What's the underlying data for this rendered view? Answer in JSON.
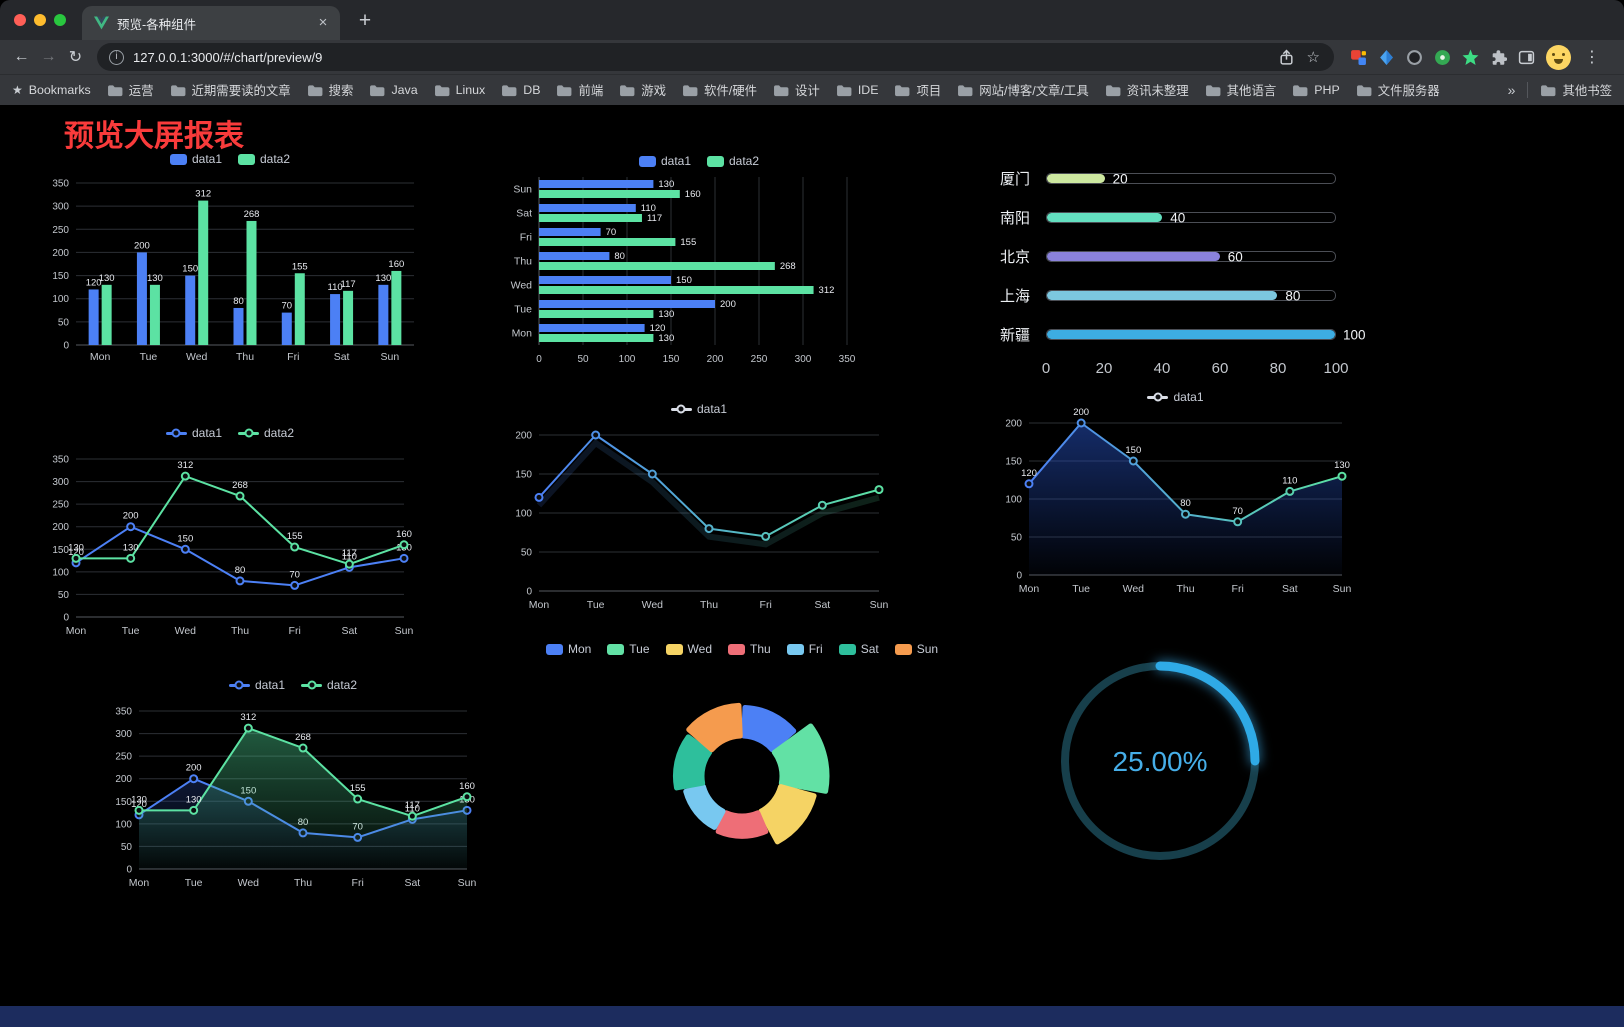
{
  "browser": {
    "tab": {
      "title": "预览-各种组件"
    },
    "url": "127.0.0.1:3000/#/chart/preview/9",
    "bookmarks_label": "Bookmarks",
    "bookmarks": [
      "运营",
      "近期需要读的文章",
      "搜索",
      "Java",
      "Linux",
      "DB",
      "前端",
      "游戏",
      "软件/硬件",
      "设计",
      "IDE",
      "项目",
      "网站/博客/文章/工具",
      "资讯未整理",
      "其他语言",
      "PHP",
      "文件服务器"
    ],
    "bookmarks_overflow": "»",
    "other_bookmarks": "其他书签"
  },
  "page": {
    "title": "预览大屏报表"
  },
  "chart_data": [
    {
      "type": "bar",
      "categories": [
        "Mon",
        "Tue",
        "Wed",
        "Thu",
        "Fri",
        "Sat",
        "Sun"
      ],
      "series": [
        {
          "name": "data1",
          "color": "#4C80F5",
          "values": [
            120,
            200,
            150,
            80,
            70,
            110,
            130
          ]
        },
        {
          "name": "data2",
          "color": "#5CE2A3",
          "values": [
            130,
            130,
            312,
            268,
            155,
            117,
            160
          ]
        }
      ],
      "ylim": [
        0,
        350
      ],
      "ystep": 50,
      "legend_position": "top"
    },
    {
      "type": "bar-horizontal",
      "categories": [
        "Mon",
        "Tue",
        "Wed",
        "Thu",
        "Fri",
        "Sat",
        "Sun"
      ],
      "series": [
        {
          "name": "data1",
          "color": "#4C80F5",
          "values": [
            120,
            200,
            150,
            80,
            70,
            110,
            130
          ]
        },
        {
          "name": "data2",
          "color": "#5CE2A3",
          "values": [
            130,
            130,
            312,
            268,
            155,
            117,
            160
          ]
        }
      ],
      "xlim": [
        0,
        350
      ],
      "xstep": 50,
      "legend_position": "top"
    },
    {
      "type": "progress",
      "items": [
        {
          "label": "厦门",
          "value": 20,
          "color": "#CDE8A0"
        },
        {
          "label": "南阳",
          "value": 40,
          "color": "#63DFC0"
        },
        {
          "label": "北京",
          "value": 60,
          "color": "#8A82DB"
        },
        {
          "label": "上海",
          "value": 80,
          "color": "#7CC7DF"
        },
        {
          "label": "新疆",
          "value": 100,
          "color": "#3DADE2"
        }
      ],
      "max": 100,
      "xticks": [
        0,
        20,
        40,
        60,
        80,
        100
      ]
    },
    {
      "type": "line",
      "categories": [
        "Mon",
        "Tue",
        "Wed",
        "Thu",
        "Fri",
        "Sat",
        "Sun"
      ],
      "series": [
        {
          "name": "data1",
          "color": "#4C80F5",
          "values": [
            120,
            200,
            150,
            80,
            70,
            110,
            130
          ]
        },
        {
          "name": "data2",
          "color": "#5CE2A3",
          "values": [
            130,
            130,
            312,
            268,
            155,
            117,
            160
          ]
        }
      ],
      "ylim": [
        0,
        350
      ],
      "ystep": 50,
      "labels": true,
      "legend_position": "top"
    },
    {
      "type": "line",
      "categories": [
        "Mon",
        "Tue",
        "Wed",
        "Thu",
        "Fri",
        "Sat",
        "Sun"
      ],
      "series": [
        {
          "name": "data1",
          "gradient": [
            "#4C80F5",
            "#5CE2A3"
          ],
          "legend_color": "#D9DDE6",
          "values": [
            120,
            200,
            150,
            80,
            70,
            110,
            130
          ]
        }
      ],
      "ylim": [
        0,
        200
      ],
      "ystep": 50,
      "labels": false,
      "shadow": true,
      "legend_position": "top"
    },
    {
      "type": "line",
      "categories": [
        "Mon",
        "Tue",
        "Wed",
        "Thu",
        "Fri",
        "Sat",
        "Sun"
      ],
      "series": [
        {
          "name": "data1",
          "gradient": [
            "#4C80F5",
            "#5CE2A3"
          ],
          "legend_color": "#D9DDE6",
          "area_from": "rgba(38,80,190,0.55)",
          "area_to": "rgba(38,80,190,0.03)",
          "values": [
            120,
            200,
            150,
            80,
            70,
            110,
            130
          ]
        }
      ],
      "ylim": [
        0,
        200
      ],
      "ystep": 50,
      "labels": true,
      "legend_position": "top"
    },
    {
      "type": "line",
      "categories": [
        "Mon",
        "Tue",
        "Wed",
        "Thu",
        "Fri",
        "Sat",
        "Sun"
      ],
      "series": [
        {
          "name": "data1",
          "color": "#4C80F5",
          "area_from": "rgba(40,70,150,0.35)",
          "area_to": "rgba(40,70,150,0.02)",
          "values": [
            120,
            200,
            150,
            80,
            70,
            110,
            130
          ]
        },
        {
          "name": "data2",
          "color": "#5CE2A3",
          "area_from": "rgba(74,200,140,0.45)",
          "area_to": "rgba(74,200,140,0.03)",
          "values": [
            130,
            130,
            312,
            268,
            155,
            117,
            160
          ]
        }
      ],
      "ylim": [
        0,
        350
      ],
      "ystep": 50,
      "labels": true,
      "legend_position": "top"
    },
    {
      "type": "pie",
      "rose": true,
      "items": [
        {
          "name": "Mon",
          "value": 120,
          "color": "#4C80F5"
        },
        {
          "name": "Tue",
          "value": 200,
          "color": "#62E1A5"
        },
        {
          "name": "Wed",
          "value": 150,
          "color": "#F5D364"
        },
        {
          "name": "Thu",
          "value": 80,
          "color": "#EE6E77"
        },
        {
          "name": "Fri",
          "value": 70,
          "color": "#78C8F0"
        },
        {
          "name": "Sat",
          "value": 110,
          "color": "#2EBF9C"
        },
        {
          "name": "Sun",
          "value": 130,
          "color": "#F59B4E"
        }
      ],
      "legend_position": "top"
    },
    {
      "type": "gauge",
      "value": 25,
      "label": "25.00%",
      "color": "#2FAAE6",
      "track_color": "#173F4B"
    }
  ]
}
